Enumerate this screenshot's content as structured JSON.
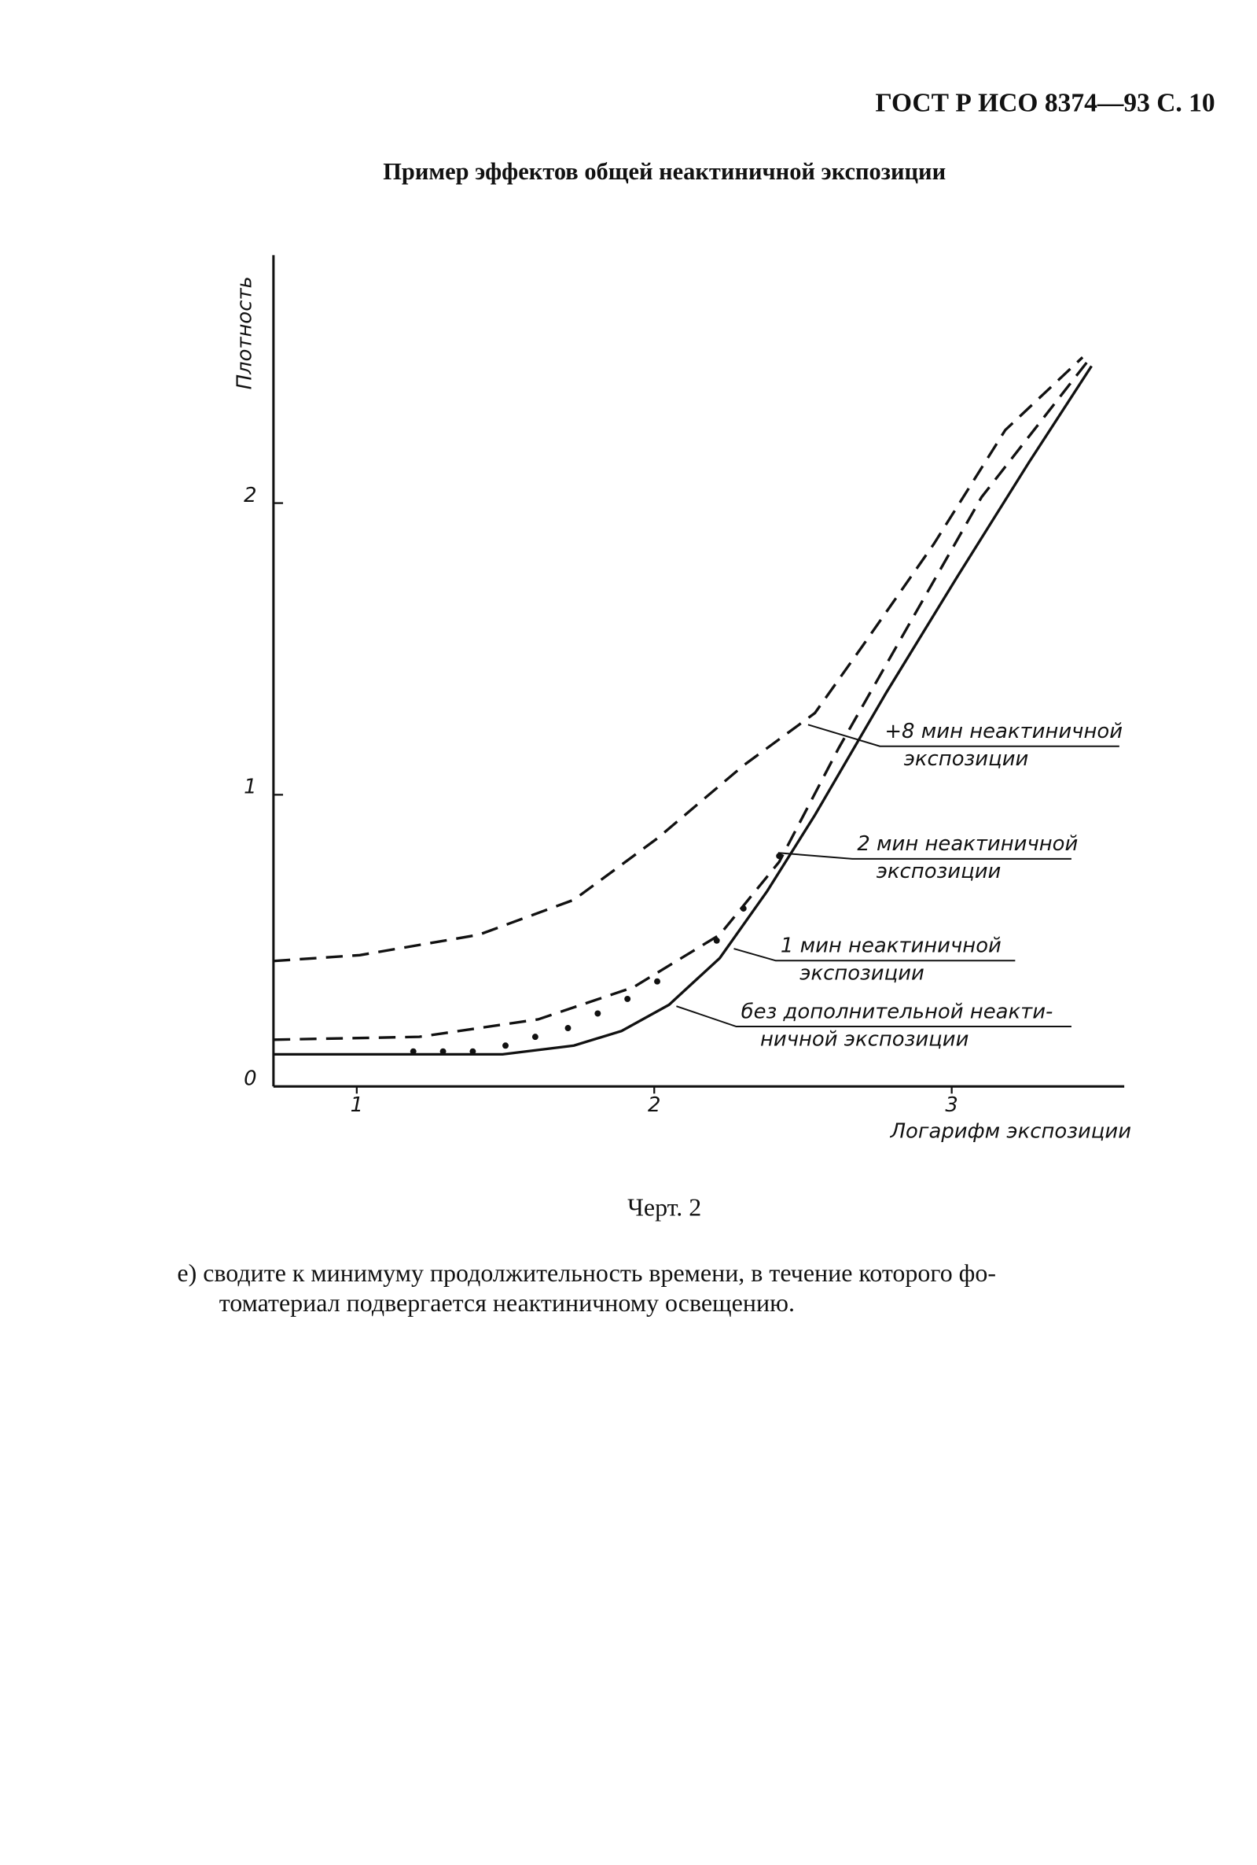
{
  "header": "ГОСТ Р ИСО 8374—93 С. 10",
  "title": "Пример эффектов общей неактиничной экспозиции",
  "chart_data": {
    "type": "line",
    "xlabel": "Логарифм экспозиции",
    "ylabel": "Плотность",
    "xlim": [
      0.72,
      3.58
    ],
    "ylim": [
      0,
      2.85
    ],
    "xticks": [
      1,
      2,
      3
    ],
    "yticks": [
      0,
      1,
      2
    ],
    "color": "#111",
    "series": [
      {
        "style": "dashed",
        "x": [
          0.72,
          1.01,
          1.41,
          1.73,
          2.01,
          2.3,
          2.54,
          2.7,
          2.94,
          3.18,
          3.44
        ],
        "values": [
          0.43,
          0.45,
          0.52,
          0.64,
          0.85,
          1.1,
          1.28,
          1.51,
          1.86,
          2.25,
          2.5
        ]
      },
      {
        "style": "dashed",
        "x": [
          0.72,
          1.21,
          1.61,
          1.93,
          2.22,
          2.42,
          2.62,
          2.86,
          3.1,
          3.46
        ],
        "values": [
          0.16,
          0.17,
          0.23,
          0.34,
          0.52,
          0.77,
          1.16,
          1.59,
          2.02,
          2.49
        ]
      },
      {
        "style": "dots",
        "x": [
          1.19,
          1.29,
          1.39,
          1.5,
          1.6,
          1.71,
          1.81,
          1.91,
          2.01,
          2.21,
          2.3,
          2.42
        ],
        "values": [
          0.12,
          0.12,
          0.12,
          0.14,
          0.17,
          0.2,
          0.25,
          0.3,
          0.36,
          0.5,
          0.61,
          0.79
        ]
      },
      {
        "style": "solid",
        "x": [
          0.72,
          1.49,
          1.73,
          1.89,
          2.05,
          2.22,
          2.38,
          2.54,
          2.78,
          3.02,
          3.26,
          3.47
        ],
        "values": [
          0.11,
          0.11,
          0.14,
          0.19,
          0.28,
          0.44,
          0.67,
          0.93,
          1.35,
          1.75,
          2.14,
          2.47
        ]
      }
    ],
    "annotations": [
      {
        "lines": [
          "+8 мин неактиничной",
          "экспозиции"
        ]
      },
      {
        "lines": [
          "2 мин неактиничной",
          "экспозиции"
        ]
      },
      {
        "lines": [
          "1 мин неактиничной",
          "экспозиции"
        ]
      },
      {
        "lines": [
          "без дополнительной неакти-",
          "ничной экспозиции"
        ]
      }
    ]
  },
  "caption": "Черт. 2",
  "paragraph": [
    "е) сводите к минимуму продолжительность времени, в течение которого фо-",
    "томатериал подвергается неактиничному освещению."
  ]
}
